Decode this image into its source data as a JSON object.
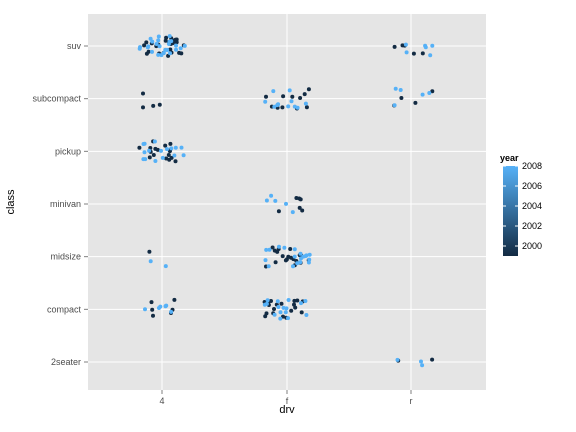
{
  "chart_data": {
    "type": "scatter",
    "title": "",
    "xlabel": "drv",
    "ylabel": "class",
    "x_categories": [
      "4",
      "f",
      "r"
    ],
    "y_categories": [
      "2seater",
      "compact",
      "midsize",
      "minivan",
      "pickup",
      "subcompact",
      "suv"
    ],
    "grid": true,
    "jitter": true,
    "color_scale": {
      "variable": "year",
      "domain": [
        1999,
        2008
      ],
      "ticks": [
        2000,
        2002,
        2004,
        2006,
        2008
      ],
      "low_color": "#132B43",
      "high_color": "#56B1F7",
      "legend_position": "right"
    },
    "groups": [
      {
        "x": "4",
        "y": "suv",
        "count_1999": 26,
        "count_2008": 25
      },
      {
        "x": "4",
        "y": "subcompact",
        "count_1999": 4,
        "count_2008": 0
      },
      {
        "x": "4",
        "y": "pickup",
        "count_1999": 17,
        "count_2008": 16
      },
      {
        "x": "4",
        "y": "midsize",
        "count_1999": 1,
        "count_2008": 2
      },
      {
        "x": "4",
        "y": "compact",
        "count_1999": 6,
        "count_2008": 6
      },
      {
        "x": "f",
        "y": "subcompact",
        "count_1999": 11,
        "count_2008": 11
      },
      {
        "x": "f",
        "y": "minivan",
        "count_1999": 6,
        "count_2008": 5
      },
      {
        "x": "f",
        "y": "midsize",
        "count_1999": 19,
        "count_2008": 19
      },
      {
        "x": "f",
        "y": "compact",
        "count_1999": 19,
        "count_2008": 16
      },
      {
        "x": "r",
        "y": "suv",
        "count_1999": 5,
        "count_2008": 6
      },
      {
        "x": "r",
        "y": "subcompact",
        "count_1999": 4,
        "count_2008": 5
      },
      {
        "x": "r",
        "y": "2seater",
        "count_1999": 2,
        "count_2008": 3
      }
    ]
  }
}
